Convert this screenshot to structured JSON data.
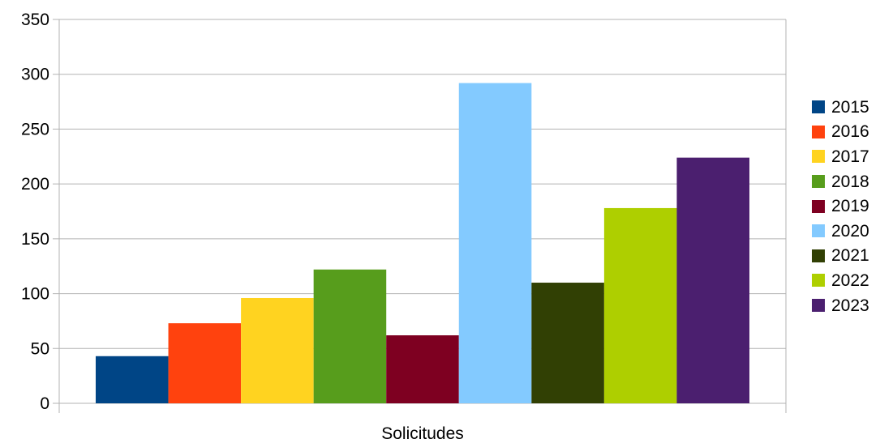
{
  "chart_data": {
    "type": "bar",
    "categories": [
      "Solicitudes"
    ],
    "series": [
      {
        "name": "2015",
        "values": [
          43
        ],
        "color": "#004586"
      },
      {
        "name": "2016",
        "values": [
          73
        ],
        "color": "#ff420e"
      },
      {
        "name": "2017",
        "values": [
          96
        ],
        "color": "#ffd320"
      },
      {
        "name": "2018",
        "values": [
          122
        ],
        "color": "#579d1c"
      },
      {
        "name": "2019",
        "values": [
          62
        ],
        "color": "#7e0021"
      },
      {
        "name": "2020",
        "values": [
          292
        ],
        "color": "#83caff"
      },
      {
        "name": "2021",
        "values": [
          110
        ],
        "color": "#314004"
      },
      {
        "name": "2022",
        "values": [
          178
        ],
        "color": "#aecf00"
      },
      {
        "name": "2023",
        "values": [
          224
        ],
        "color": "#4b1f6f"
      }
    ],
    "ylim": [
      0,
      350
    ],
    "yticks": [
      "0",
      "50",
      "100",
      "150",
      "200",
      "250",
      "300",
      "350"
    ],
    "grid": true,
    "legend_position": "right"
  }
}
